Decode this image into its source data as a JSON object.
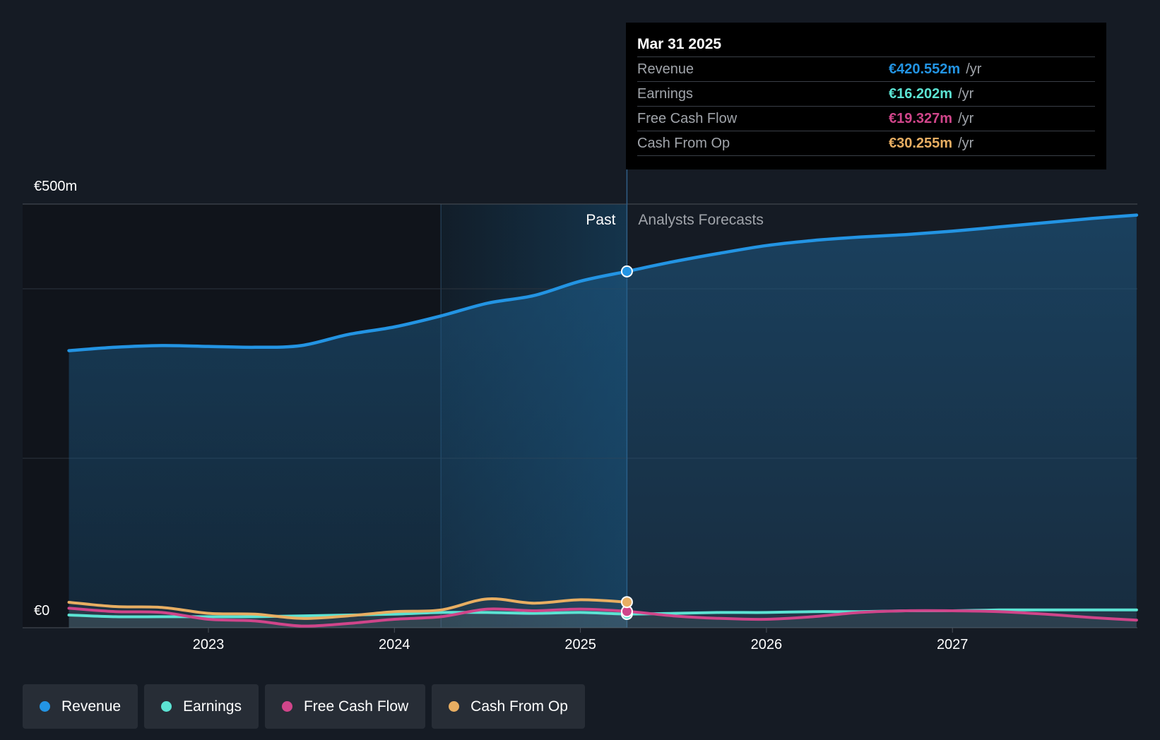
{
  "chart_data": {
    "type": "area",
    "y_axis": {
      "top_label": "€500m",
      "bottom_label": "€0",
      "ylim": [
        0,
        500
      ]
    },
    "x_ticks": [
      "2023",
      "2024",
      "2025",
      "2026",
      "2027"
    ],
    "x_tick_values": [
      2023,
      2024,
      2025,
      2026,
      2027
    ],
    "x_range": [
      2022.25,
      2027.99
    ],
    "past_start": 2024.25,
    "divider_date": 2025.25,
    "past_label": "Past",
    "forecast_label": "Analysts Forecasts",
    "series": [
      {
        "name": "Revenue",
        "color": "#2394e3",
        "area": true,
        "points": [
          [
            2022.25,
            327
          ],
          [
            2022.5,
            331
          ],
          [
            2022.75,
            333
          ],
          [
            2023.0,
            332
          ],
          [
            2023.25,
            331
          ],
          [
            2023.5,
            333
          ],
          [
            2023.75,
            346
          ],
          [
            2024.0,
            355
          ],
          [
            2024.25,
            368
          ],
          [
            2024.5,
            383
          ],
          [
            2024.75,
            392
          ],
          [
            2025.0,
            409
          ],
          [
            2025.25,
            420.552
          ],
          [
            2025.5,
            432
          ],
          [
            2025.75,
            442
          ],
          [
            2026.0,
            451
          ],
          [
            2026.25,
            457
          ],
          [
            2026.5,
            461
          ],
          [
            2026.75,
            464
          ],
          [
            2027.0,
            468
          ],
          [
            2027.25,
            473
          ],
          [
            2027.5,
            478
          ],
          [
            2027.75,
            483
          ],
          [
            2027.99,
            487
          ]
        ]
      },
      {
        "name": "Earnings",
        "color": "#5ce3d3",
        "area": false,
        "points": [
          [
            2022.25,
            15
          ],
          [
            2022.5,
            13
          ],
          [
            2022.75,
            13
          ],
          [
            2023.0,
            13
          ],
          [
            2023.25,
            13
          ],
          [
            2023.5,
            14
          ],
          [
            2023.75,
            15
          ],
          [
            2024.0,
            16
          ],
          [
            2024.25,
            18
          ],
          [
            2024.5,
            18
          ],
          [
            2024.75,
            17
          ],
          [
            2025.0,
            18
          ],
          [
            2025.25,
            16.202
          ],
          [
            2025.5,
            17
          ],
          [
            2025.75,
            18
          ],
          [
            2026.0,
            18
          ],
          [
            2026.25,
            19
          ],
          [
            2026.5,
            19
          ],
          [
            2026.75,
            20
          ],
          [
            2027.0,
            20
          ],
          [
            2027.25,
            21
          ],
          [
            2027.5,
            21
          ],
          [
            2027.75,
            21
          ],
          [
            2027.99,
            21
          ]
        ]
      },
      {
        "name": "Free Cash Flow",
        "color": "#d0458a",
        "area": false,
        "points": [
          [
            2022.25,
            23
          ],
          [
            2022.5,
            19
          ],
          [
            2022.75,
            18
          ],
          [
            2023.0,
            10
          ],
          [
            2023.25,
            8
          ],
          [
            2023.5,
            2
          ],
          [
            2023.75,
            5
          ],
          [
            2024.0,
            10
          ],
          [
            2024.25,
            13
          ],
          [
            2024.5,
            22
          ],
          [
            2024.75,
            20
          ],
          [
            2025.0,
            22
          ],
          [
            2025.25,
            19.327
          ],
          [
            2025.5,
            14
          ],
          [
            2025.75,
            11
          ],
          [
            2026.0,
            10
          ],
          [
            2026.25,
            13
          ],
          [
            2026.5,
            18
          ],
          [
            2026.75,
            20
          ],
          [
            2027.0,
            20
          ],
          [
            2027.25,
            19
          ],
          [
            2027.5,
            16
          ],
          [
            2027.75,
            12
          ],
          [
            2027.99,
            9
          ]
        ]
      },
      {
        "name": "Cash From Op",
        "color": "#e8ae62",
        "area": false,
        "points": [
          [
            2022.25,
            30
          ],
          [
            2022.5,
            25
          ],
          [
            2022.75,
            24
          ],
          [
            2023.0,
            17
          ],
          [
            2023.25,
            16
          ],
          [
            2023.5,
            11
          ],
          [
            2023.75,
            14
          ],
          [
            2024.0,
            19
          ],
          [
            2024.25,
            21
          ],
          [
            2024.5,
            34
          ],
          [
            2024.75,
            29
          ],
          [
            2025.0,
            33
          ],
          [
            2025.25,
            30.255
          ]
        ]
      }
    ]
  },
  "tooltip": {
    "date": "Mar 31 2025",
    "rows": [
      {
        "label": "Revenue",
        "value": "€420.552m",
        "unit": "/yr",
        "color": "#2394e3"
      },
      {
        "label": "Earnings",
        "value": "€16.202m",
        "unit": "/yr",
        "color": "#5ce3d3"
      },
      {
        "label": "Free Cash Flow",
        "value": "€19.327m",
        "unit": "/yr",
        "color": "#d0458a"
      },
      {
        "label": "Cash From Op",
        "value": "€30.255m",
        "unit": "/yr",
        "color": "#e8ae62"
      }
    ]
  },
  "legend": [
    {
      "label": "Revenue",
      "color": "#2394e3"
    },
    {
      "label": "Earnings",
      "color": "#5ce3d3"
    },
    {
      "label": "Free Cash Flow",
      "color": "#d0458a"
    },
    {
      "label": "Cash From Op",
      "color": "#e8ae62"
    }
  ]
}
